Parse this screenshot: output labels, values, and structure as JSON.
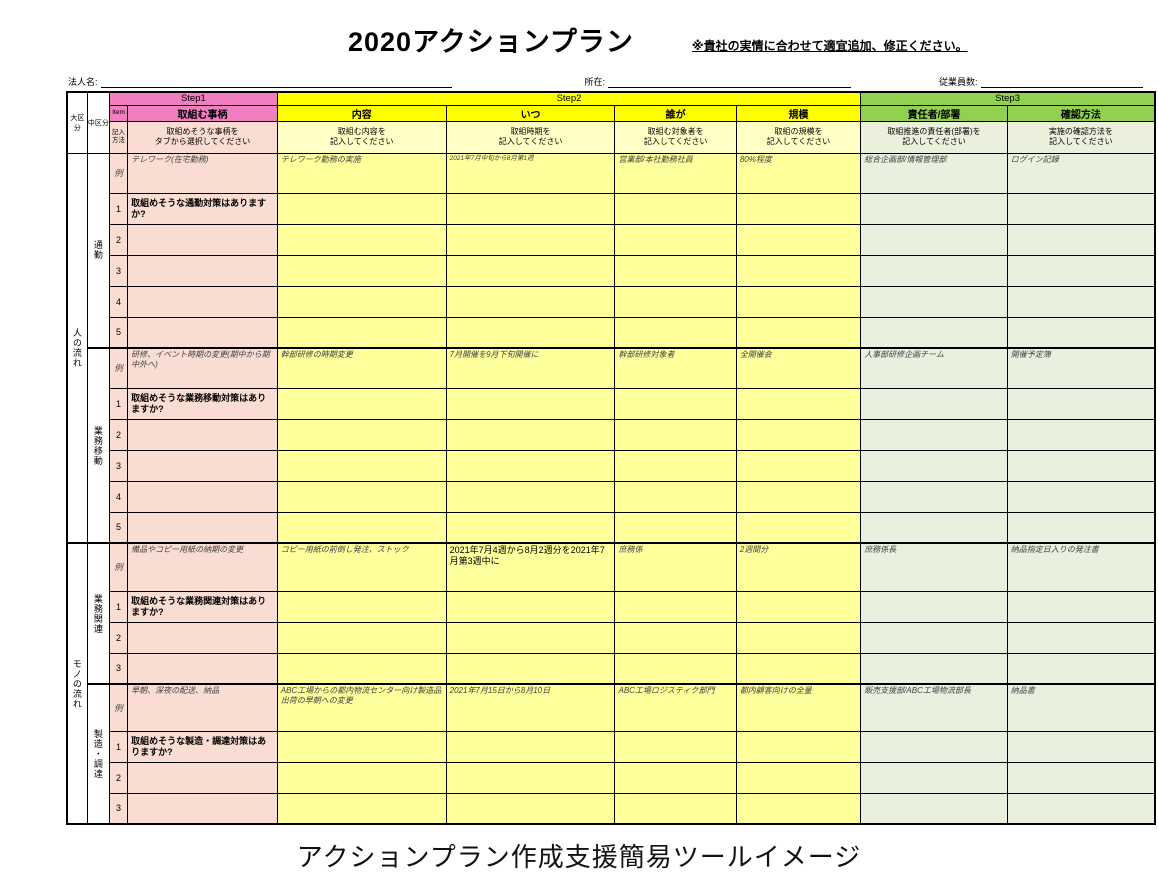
{
  "page": {
    "title": "2020アクションプラン",
    "note": "※貴社の実情に合わせて適宜追加、修正ください。",
    "caption": "アクションプラン作成支援簡易ツールイメージ"
  },
  "form": {
    "company_label": "法人名:",
    "company_value": "",
    "location_label": "所在:",
    "location_value": "",
    "employees_label": "従業員数:",
    "employees_value": ""
  },
  "colors": {
    "step1_header": "#F17EC1",
    "step2_header": "#FFFF00",
    "step3_header": "#92D050",
    "step1_light": "#F9DCD2",
    "step2_light": "#FFFF9C",
    "step2_lighter": "#FFFFC6",
    "step3_light": "#EAF0DC",
    "step3_body": "#E9F0DE"
  },
  "table": {
    "steps": [
      "Step1",
      "Step2",
      "Step3"
    ],
    "col_headers": {
      "major": "大区分",
      "middle": "中区分",
      "item": "Item",
      "entry_method": "記入方法",
      "matter": "取組む事柄",
      "content": "内容",
      "when": "いつ",
      "who": "誰が",
      "scale": "規模",
      "owner": "責任者/部署",
      "check": "確認方法"
    },
    "instructions": {
      "matter": "取組めそうな事柄を\nタブから選択してください",
      "content": "取組む内容を\n記入してください",
      "when": "取組時期を\n記入してください",
      "who": "取組む対象者を\n記入してください",
      "scale": "取組の規模を\n記入してください",
      "owner": "取組推進の責任者(部署)を\n記入してください",
      "check": "実施の確認方法を\n記入してください"
    },
    "example_label": "例",
    "sections": [
      {
        "major": "人の流れ",
        "groups": [
          {
            "middle": "通勤",
            "example": {
              "matter": "テレワーク(在宅勤務)",
              "content": "テレワーク勤務の実施",
              "when": "2021年7月中旬から8月第1週",
              "who": "営業部/本社勤務社員",
              "scale": "80%程度",
              "owner": "総合企画部/情報管理部",
              "check": "ログイン記録"
            },
            "variants": {
              "when": "small"
            },
            "question": "取組めそうな通勤対策はありますか?",
            "row_numbers": [
              "1",
              "2",
              "3",
              "4",
              "5"
            ]
          },
          {
            "middle": "業務移動",
            "example": {
              "matter": "研修、イベント時期の変更(期中から期中外へ)",
              "content": "幹部研修の時期変更",
              "when": "7月開催を9月下旬開催に",
              "who": "幹部研修対象者",
              "scale": "全開催会",
              "owner": "人事部研修企画チーム",
              "check": "開催予定簿"
            },
            "variants": {},
            "question": "取組めそうな業務移動対策はありますか?",
            "row_numbers": [
              "1",
              "2",
              "3",
              "4",
              "5"
            ]
          }
        ]
      },
      {
        "major": "モノの流れ",
        "groups": [
          {
            "middle": "業務関連",
            "example": {
              "matter": "備品やコピー用紙の納期の変更",
              "content": "コピー用紙の前倒し発注、ストック",
              "when": "2021年7月4週から8月2週分を2021年7月第3週中に",
              "who": "庶務係",
              "scale": "2週間分",
              "owner": "庶務係長",
              "check": "納品指定日入りの発注書"
            },
            "variants": {
              "when": "plain"
            },
            "question": "取組めそうな業務関連対策はありますか?",
            "row_numbers": [
              "1",
              "2",
              "3"
            ]
          },
          {
            "middle": "製造・調達",
            "example": {
              "matter": "早朝、深夜の配送、納品",
              "content": "ABC工場からの都内物流センター向け製造品出荷の早朝への変更",
              "when": "2021年7月15日から8月10日",
              "who": "ABC工場ロジスティク部門",
              "scale": "都内顧客向けの全量",
              "owner": "販売支援部/ABC工場物流部長",
              "check": "納品書"
            },
            "variants": {},
            "question": "取組めそうな製造・調達対策はありますか?",
            "row_numbers": [
              "1",
              "2",
              "3"
            ]
          }
        ]
      }
    ]
  }
}
